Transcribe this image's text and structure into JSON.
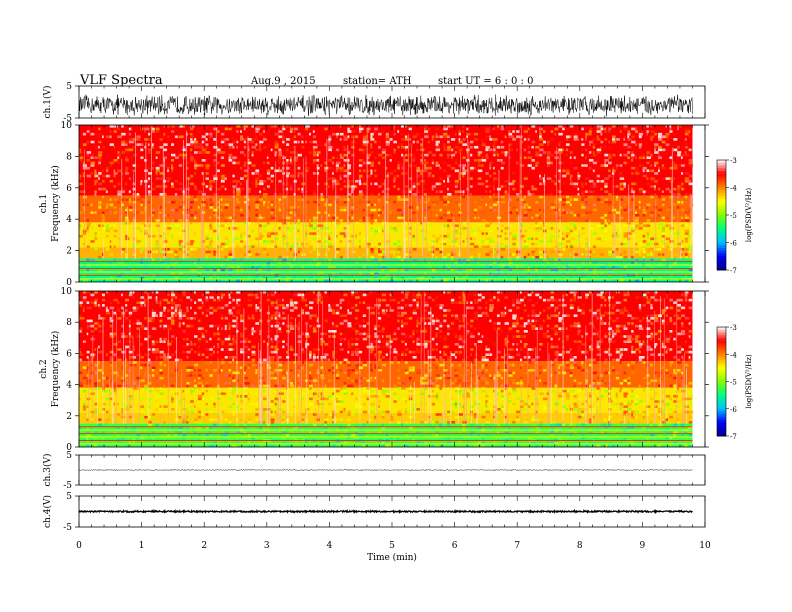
{
  "header": {
    "title": "VLF  Spectra",
    "date": "Aug.9  , 2015",
    "station": "station= ATH",
    "start": "start  UT  =   6  : 0  : 0"
  },
  "colorbar": {
    "label": "log(PSD(V²/Hz)",
    "ticks": [
      "-3",
      "-4",
      "-5",
      "-6",
      "-7"
    ]
  },
  "colors": {
    "colormap": [
      "#000080",
      "#0000ff",
      "#00c0ff",
      "#00ff80",
      "#80ff00",
      "#ffff00",
      "#ff8000",
      "#ff0000",
      "#ffffff"
    ]
  },
  "chart_data": [
    {
      "id": "ch1-waveform",
      "type": "line",
      "ylabel": "ch.1(V)",
      "ylim": [
        -5,
        5
      ],
      "yticks": [
        "5",
        "-5"
      ],
      "description_values": {
        "baseline": -1.0,
        "amplitude_max": 3.5
      },
      "xlim": [
        0,
        10
      ]
    },
    {
      "id": "ch1-spectrogram",
      "type": "heatmap",
      "channel_label": "ch.1",
      "ylabel": "Frequency  (kHz)",
      "ylim": [
        0,
        10
      ],
      "yticks": [
        "10",
        "8",
        "6",
        "4",
        "2",
        "0"
      ],
      "xlim": [
        0,
        10
      ],
      "data_end_min": 9.8,
      "zlim": [
        -7,
        -3
      ],
      "bands": [
        {
          "f_lo": 0.0,
          "f_hi": 1.5,
          "level": -5.5
        },
        {
          "f_lo": 1.5,
          "f_hi": 2.2,
          "level": -4.2
        },
        {
          "f_lo": 2.2,
          "f_hi": 3.8,
          "level": -4.4
        },
        {
          "f_lo": 3.8,
          "f_hi": 5.5,
          "level": -3.9
        },
        {
          "f_lo": 5.5,
          "f_hi": 10.0,
          "level": -3.5
        }
      ]
    },
    {
      "id": "ch2-spectrogram",
      "type": "heatmap",
      "channel_label": "ch.2",
      "ylabel": "Frequency  (kHz)",
      "ylim": [
        0,
        10
      ],
      "yticks": [
        "10",
        "8",
        "6",
        "4",
        "2",
        "0"
      ],
      "xlim": [
        0,
        10
      ],
      "data_end_min": 9.8,
      "zlim": [
        -7,
        -3
      ],
      "bands": [
        {
          "f_lo": 0.0,
          "f_hi": 1.5,
          "level": -5.3
        },
        {
          "f_lo": 1.5,
          "f_hi": 2.2,
          "level": -4.3
        },
        {
          "f_lo": 2.2,
          "f_hi": 3.8,
          "level": -4.4
        },
        {
          "f_lo": 3.8,
          "f_hi": 5.5,
          "level": -3.9
        },
        {
          "f_lo": 5.5,
          "f_hi": 10.0,
          "level": -3.5
        }
      ]
    },
    {
      "id": "ch3-waveform",
      "type": "line",
      "ylabel": "ch.3(V)",
      "ylim": [
        -5,
        5
      ],
      "yticks": [
        "5",
        "-5"
      ],
      "description_values": {
        "baseline": 0.0,
        "amplitude_max": 0.2
      },
      "xlim": [
        0,
        10
      ]
    },
    {
      "id": "ch4-waveform",
      "type": "line",
      "ylabel": "ch.4(V)",
      "ylim": [
        -5,
        5
      ],
      "yticks": [
        "5",
        "-5"
      ],
      "description_values": {
        "baseline": 0.0,
        "amplitude_max": 0.3
      },
      "xlim": [
        0,
        10
      ]
    }
  ],
  "xaxis": {
    "label": "Time  (min)",
    "ticks": [
      "0",
      "1",
      "2",
      "3",
      "4",
      "5",
      "6",
      "7",
      "8",
      "9",
      "10"
    ]
  }
}
